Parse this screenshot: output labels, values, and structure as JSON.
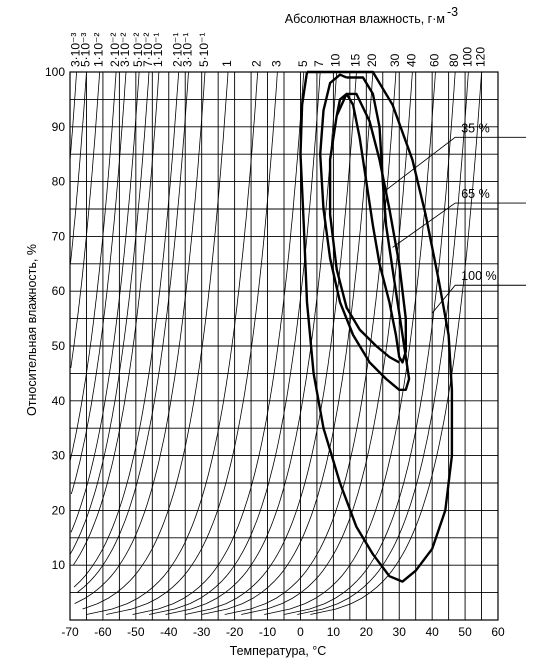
{
  "chart_data": {
    "type": "line",
    "title": "",
    "xlabel": "Температура, °С",
    "ylabel": "Относительная влажность, %",
    "top_axis_label": "Абсолютная влажность, г·м",
    "top_axis_label_sup": "-3",
    "xlim": [
      -70,
      60
    ],
    "ylim": [
      0,
      100
    ],
    "x_ticks": [
      "-70",
      "-60",
      "-50",
      "-40",
      "-30",
      "-20",
      "-10",
      "0",
      "10",
      "20",
      "30",
      "40",
      "50",
      "60"
    ],
    "y_ticks": [
      "10",
      "20",
      "30",
      "40",
      "50",
      "60",
      "70",
      "80",
      "90",
      "100"
    ],
    "grid": true,
    "absolute_humidity_isolines": [
      {
        "label": "3·10⁻³",
        "value": 0.003,
        "top_x": -68
      },
      {
        "label": "5·10⁻³",
        "value": 0.005,
        "top_x": -65
      },
      {
        "label": "1·10⁻²",
        "value": 0.01,
        "top_x": -61
      },
      {
        "label": "2·10⁻²",
        "value": 0.02,
        "top_x": -56
      },
      {
        "label": "3·10⁻²",
        "value": 0.03,
        "top_x": -53
      },
      {
        "label": "5·10⁻²",
        "value": 0.05,
        "top_x": -49
      },
      {
        "label": "7·10⁻²",
        "value": 0.07,
        "top_x": -46
      },
      {
        "label": "1·10⁻¹",
        "value": 0.1,
        "top_x": -43
      },
      {
        "label": "2·10⁻¹",
        "value": 0.2,
        "top_x": -37
      },
      {
        "label": "3·10⁻¹",
        "value": 0.3,
        "top_x": -34
      },
      {
        "label": "5·10⁻¹",
        "value": 0.5,
        "top_x": -29
      },
      {
        "label": "1",
        "value": 1,
        "top_x": -22
      },
      {
        "label": "2",
        "value": 2,
        "top_x": -13
      },
      {
        "label": "3",
        "value": 3,
        "top_x": -7
      },
      {
        "label": "5",
        "value": 5,
        "top_x": 1
      },
      {
        "label": "7",
        "value": 7,
        "top_x": 6
      },
      {
        "label": "10",
        "value": 10,
        "top_x": 11
      },
      {
        "label": "15",
        "value": 15,
        "top_x": 17
      },
      {
        "label": "20",
        "value": 20,
        "top_x": 22
      },
      {
        "label": "30",
        "value": 30,
        "top_x": 29
      },
      {
        "label": "40",
        "value": 40,
        "top_x": 34
      },
      {
        "label": "60",
        "value": 60,
        "top_x": 41
      },
      {
        "label": "80",
        "value": 80,
        "top_x": 47
      },
      {
        "label": "100",
        "value": 100,
        "top_x": 51
      },
      {
        "label": "120",
        "value": 120,
        "top_x": 55
      }
    ],
    "series": [
      {
        "name": "35 %",
        "points": [
          [
            11,
            92
          ],
          [
            12,
            95
          ],
          [
            14,
            96
          ],
          [
            16,
            94
          ],
          [
            18,
            88
          ],
          [
            20,
            80
          ],
          [
            22,
            72
          ],
          [
            24,
            65
          ],
          [
            27,
            58
          ],
          [
            29,
            52
          ],
          [
            30,
            48
          ],
          [
            31,
            47
          ],
          [
            32,
            49
          ],
          [
            32,
            55
          ],
          [
            30,
            65
          ],
          [
            27,
            75
          ],
          [
            24,
            84
          ],
          [
            21,
            91
          ],
          [
            17,
            96
          ],
          [
            14,
            96
          ],
          [
            11,
            92
          ],
          [
            9,
            84
          ],
          [
            9,
            74
          ],
          [
            11,
            64
          ],
          [
            14,
            57
          ],
          [
            18,
            53
          ],
          [
            23,
            50
          ],
          [
            27,
            48
          ],
          [
            30,
            47
          ]
        ]
      },
      {
        "name": "65 %",
        "points": [
          [
            14,
            99
          ],
          [
            19,
            99
          ],
          [
            22,
            96
          ],
          [
            24,
            90
          ],
          [
            25,
            80
          ],
          [
            26,
            72
          ],
          [
            28,
            64
          ],
          [
            30,
            56
          ],
          [
            32,
            48
          ],
          [
            33,
            44
          ],
          [
            32,
            42
          ],
          [
            30,
            42
          ],
          [
            26,
            44
          ],
          [
            21,
            47
          ],
          [
            16,
            52
          ],
          [
            12,
            58
          ],
          [
            9,
            66
          ],
          [
            7,
            75
          ],
          [
            6,
            85
          ],
          [
            7,
            93
          ],
          [
            9,
            98
          ],
          [
            12,
            99.5
          ],
          [
            14,
            99
          ]
        ]
      },
      {
        "name": "100 %",
        "points": [
          [
            2,
            100
          ],
          [
            22,
            100
          ],
          [
            28,
            94
          ],
          [
            34,
            84
          ],
          [
            38,
            74
          ],
          [
            42,
            62
          ],
          [
            45,
            52
          ],
          [
            46,
            42
          ],
          [
            46,
            30
          ],
          [
            44,
            20
          ],
          [
            40,
            13
          ],
          [
            35,
            9
          ],
          [
            31,
            7
          ],
          [
            27,
            8
          ],
          [
            22,
            12
          ],
          [
            17,
            17
          ],
          [
            12,
            25
          ],
          [
            7,
            35
          ],
          [
            4,
            45
          ],
          [
            2,
            58
          ],
          [
            1,
            72
          ],
          [
            0,
            85
          ],
          [
            0.5,
            94
          ],
          [
            2,
            100
          ]
        ]
      }
    ],
    "annotations": [
      {
        "label": "35 %",
        "leader_from": [
          25,
          78
        ],
        "text_at": [
          47,
          89
        ]
      },
      {
        "label": "65 %",
        "leader_from": [
          28,
          68
        ],
        "text_at": [
          47,
          77
        ]
      },
      {
        "label": "100 %",
        "leader_from": [
          40,
          56
        ],
        "text_at": [
          47,
          62
        ]
      }
    ]
  }
}
